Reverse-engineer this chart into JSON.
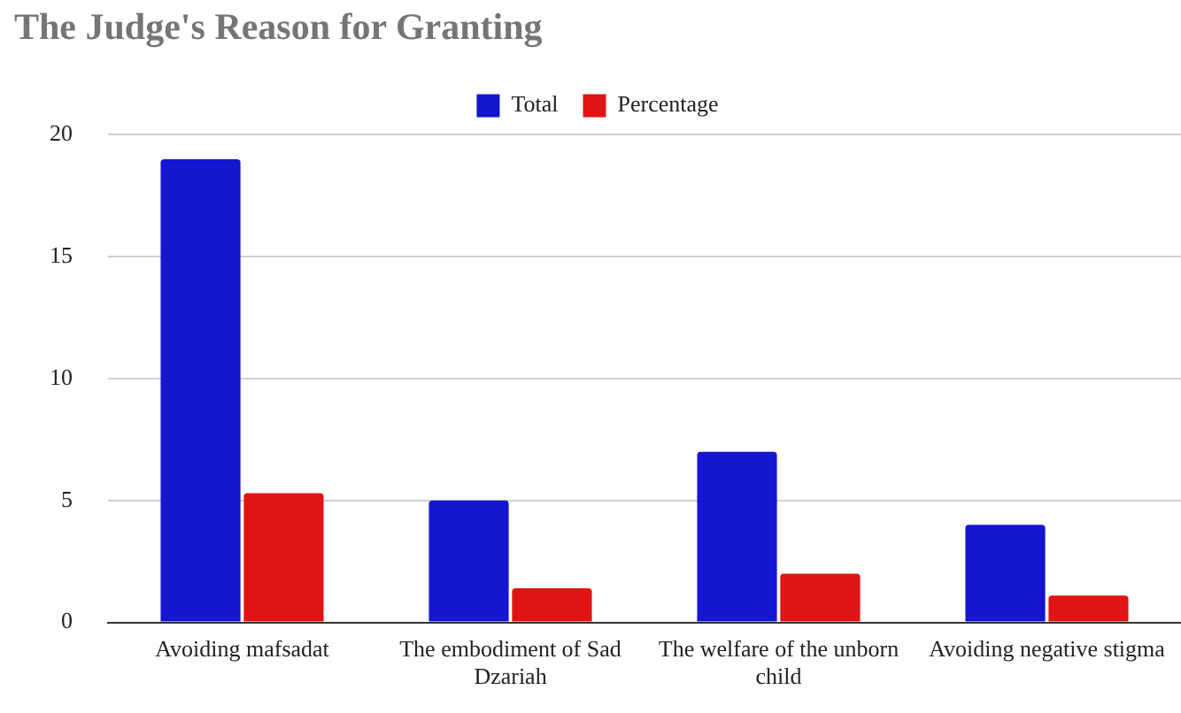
{
  "chart_data": {
    "type": "bar",
    "title": "The Judge's Reason for Granting",
    "categories": [
      "Avoiding mafsadat",
      "The embodiment of Sad Dzariah",
      "The welfare of the unborn child",
      "Avoiding negative stigma"
    ],
    "series": [
      {
        "name": "Total",
        "color": "#1616d0",
        "values": [
          19,
          5,
          7,
          4
        ]
      },
      {
        "name": "Percentage",
        "color": "#e01414",
        "values": [
          5.3,
          1.4,
          2.0,
          1.1
        ]
      }
    ],
    "ylim": [
      0,
      20
    ],
    "yticks": [
      0,
      5,
      10,
      15,
      20
    ],
    "grid": "y",
    "legend": "top"
  }
}
